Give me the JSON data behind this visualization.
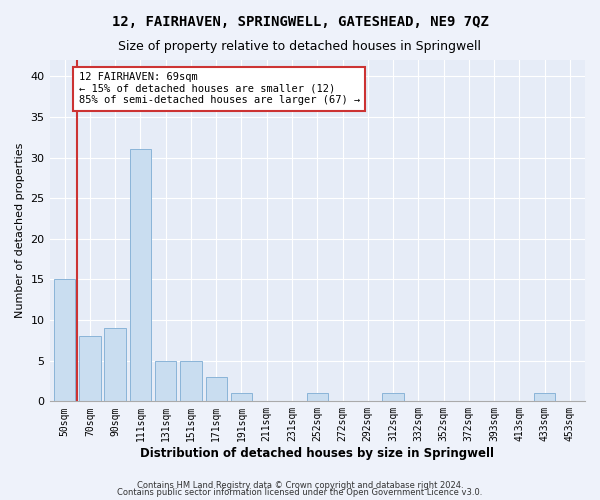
{
  "title": "12, FAIRHAVEN, SPRINGWELL, GATESHEAD, NE9 7QZ",
  "subtitle": "Size of property relative to detached houses in Springwell",
  "xlabel": "Distribution of detached houses by size in Springwell",
  "ylabel": "Number of detached properties",
  "bar_color": "#c9ddf0",
  "bar_edge_color": "#8ab4d8",
  "highlight_color": "#cc3333",
  "annotation_text": "12 FAIRHAVEN: 69sqm\n← 15% of detached houses are smaller (12)\n85% of semi-detached houses are larger (67) →",
  "categories": [
    "50sqm",
    "70sqm",
    "90sqm",
    "111sqm",
    "131sqm",
    "151sqm",
    "171sqm",
    "191sqm",
    "211sqm",
    "231sqm",
    "252sqm",
    "272sqm",
    "292sqm",
    "312sqm",
    "332sqm",
    "352sqm",
    "372sqm",
    "393sqm",
    "413sqm",
    "433sqm",
    "453sqm"
  ],
  "values": [
    15,
    8,
    9,
    31,
    5,
    5,
    3,
    1,
    0,
    0,
    1,
    0,
    0,
    1,
    0,
    0,
    0,
    0,
    0,
    1,
    0
  ],
  "ylim": [
    0,
    42
  ],
  "yticks": [
    0,
    5,
    10,
    15,
    20,
    25,
    30,
    35,
    40
  ],
  "footer_line1": "Contains HM Land Registry data © Crown copyright and database right 2024.",
  "footer_line2": "Contains public sector information licensed under the Open Government Licence v3.0.",
  "background_color": "#eef2fa",
  "plot_bg_color": "#e6ecf7"
}
